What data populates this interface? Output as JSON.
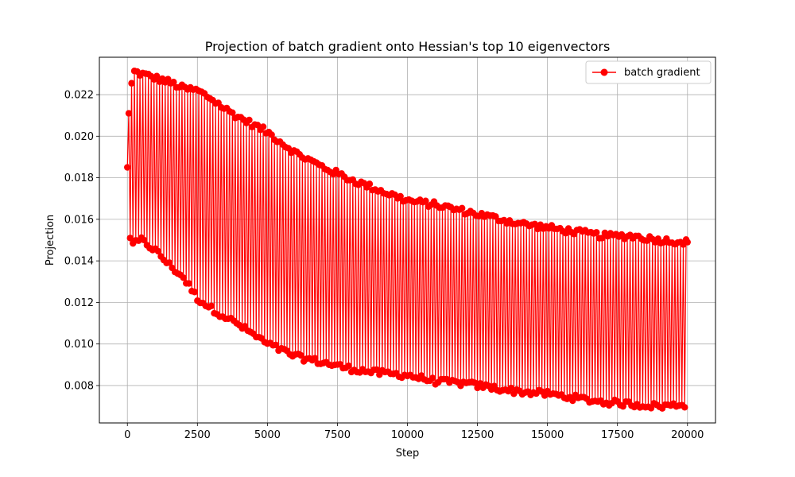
{
  "chart_data": {
    "type": "line",
    "title": "Projection of batch gradient onto Hessian's top 10 eigenvectors",
    "xlabel": "Step",
    "ylabel": "Projection",
    "xlim": [
      -1000,
      21000
    ],
    "ylim": [
      0.0062,
      0.0238
    ],
    "x_ticks": [
      0,
      2500,
      5000,
      7500,
      10000,
      12500,
      15000,
      17500,
      20000
    ],
    "x_tick_labels": [
      "0",
      "2500",
      "5000",
      "7500",
      "10000",
      "12500",
      "15000",
      "17500",
      "20000"
    ],
    "y_ticks": [
      0.008,
      0.01,
      0.012,
      0.014,
      0.016,
      0.018,
      0.02,
      0.022
    ],
    "y_tick_labels": [
      "0.008",
      "0.010",
      "0.012",
      "0.014",
      "0.016",
      "0.018",
      "0.020",
      "0.022"
    ],
    "grid": true,
    "legend_position": "top-right",
    "series": [
      {
        "name": "batch gradient",
        "color": "#ff0000",
        "marker": "circle",
        "description": "Values alternate every 50 steps between an upper envelope and a lower envelope",
        "x_start": 0,
        "x_end": 20000,
        "x_step": 50,
        "first_values": [
          0.0185,
          0.0211,
          0.0151
        ],
        "last_value": 0.0149,
        "upper_envelope": {
          "x": [
            100,
            250,
            500,
            1000,
            1500,
            2000,
            2500,
            3000,
            3500,
            4000,
            5000,
            6000,
            7000,
            8000,
            9000,
            10000,
            11000,
            12000,
            13000,
            14000,
            15000,
            16000,
            17000,
            18000,
            19000,
            20000
          ],
          "y": [
            0.0222,
            0.0231,
            0.023,
            0.0228,
            0.0226,
            0.0223,
            0.0222,
            0.0218,
            0.0213,
            0.0209,
            0.0202,
            0.0192,
            0.0185,
            0.0179,
            0.0174,
            0.0169,
            0.0167,
            0.0164,
            0.0161,
            0.0158,
            0.0156,
            0.0154,
            0.0152,
            0.0152,
            0.015,
            0.0149
          ]
        },
        "lower_envelope": {
          "x": [
            100,
            250,
            500,
            1000,
            1500,
            2000,
            2500,
            3000,
            3500,
            4000,
            5000,
            6000,
            7000,
            8000,
            9000,
            10000,
            11000,
            12000,
            13000,
            14000,
            15000,
            16000,
            17000,
            18000,
            19000,
            20000
          ],
          "y": [
            0.0151,
            0.0148,
            0.015,
            0.0145,
            0.0138,
            0.0132,
            0.0122,
            0.0117,
            0.0113,
            0.0109,
            0.01,
            0.0094,
            0.0091,
            0.0088,
            0.0086,
            0.0085,
            0.0082,
            0.0081,
            0.0079,
            0.0077,
            0.0076,
            0.0074,
            0.0072,
            0.0071,
            0.007,
            0.0071
          ]
        }
      }
    ]
  }
}
